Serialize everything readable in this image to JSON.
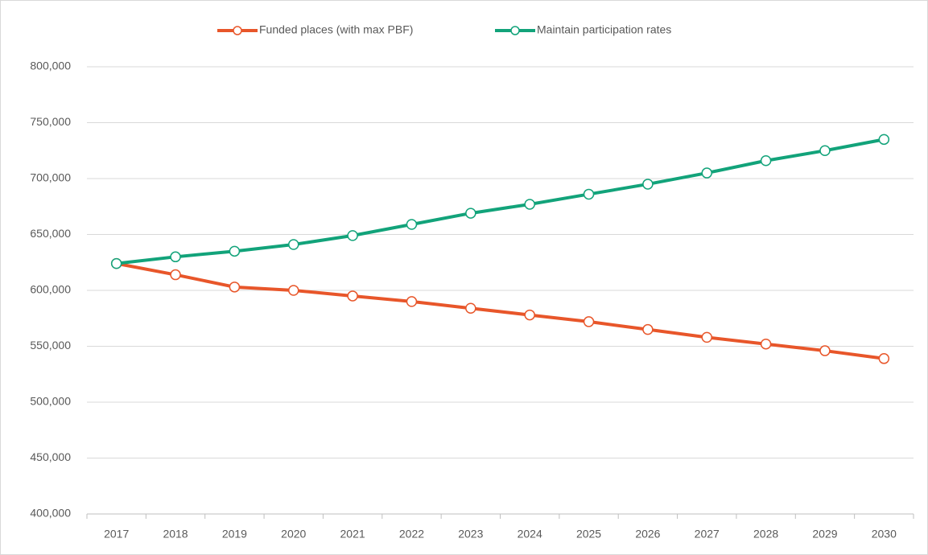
{
  "chart_data": {
    "type": "line",
    "categories": [
      "2017",
      "2018",
      "2019",
      "2020",
      "2021",
      "2022",
      "2023",
      "2024",
      "2025",
      "2026",
      "2027",
      "2028",
      "2029",
      "2030"
    ],
    "series": [
      {
        "name": "Funded places (with max PBF)",
        "color": "#e8562a",
        "values": [
          624000,
          614000,
          603000,
          600000,
          595000,
          590000,
          584000,
          578000,
          572000,
          565000,
          558000,
          552000,
          546000,
          539000
        ]
      },
      {
        "name": "Maintain participation rates",
        "color": "#12a37a",
        "values": [
          624000,
          630000,
          635000,
          641000,
          649000,
          659000,
          669000,
          677000,
          686000,
          695000,
          705000,
          716000,
          725000,
          735000
        ]
      }
    ],
    "ylim": [
      400000,
      800000
    ],
    "yticks": [
      {
        "value": 400000,
        "label": "400,000"
      },
      {
        "value": 450000,
        "label": "450,000"
      },
      {
        "value": 500000,
        "label": "500,000"
      },
      {
        "value": 550000,
        "label": "550,000"
      },
      {
        "value": 600000,
        "label": "600,000"
      },
      {
        "value": 650000,
        "label": "650,000"
      },
      {
        "value": 700000,
        "label": "700,000"
      },
      {
        "value": 750000,
        "label": "750,000"
      },
      {
        "value": 800000,
        "label": "800,000"
      }
    ],
    "grid": true,
    "legend": "top"
  }
}
